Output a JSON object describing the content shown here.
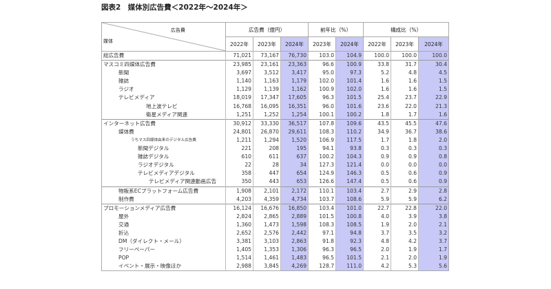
{
  "title": "図表2　媒体別広告費＜2022年～2024年＞",
  "header": {
    "corner_top": "広告費",
    "corner_bottom": "媒体",
    "group_spend": "広告費（億円）",
    "group_yoy": "前年比（%）",
    "group_share": "構成比（%）",
    "spend_years": [
      "2022年",
      "2023年",
      "2024年"
    ],
    "yoy_years": [
      "2023年",
      "2024年"
    ],
    "share_years": [
      "2022年",
      "2023年",
      "2024年"
    ]
  },
  "highlight_color": "#c9c9f7",
  "rows": [
    {
      "label": "総広告費",
      "level": 0,
      "values": [
        "71,021",
        "73,167",
        "76,730",
        "103.0",
        "104.9",
        "100.0",
        "100.0",
        "100.0"
      ]
    },
    {
      "label": "マスコミ四媒体広告費",
      "level": 0,
      "values": [
        "23,985",
        "23,161",
        "23,363",
        "96.6",
        "100.9",
        "33.8",
        "31.7",
        "30.4"
      ]
    },
    {
      "label": "新聞",
      "level": 1,
      "values": [
        "3,697",
        "3,512",
        "3,417",
        "95.0",
        "97.3",
        "5.2",
        "4.8",
        "4.5"
      ]
    },
    {
      "label": "雑誌",
      "level": 1,
      "values": [
        "1,140",
        "1,163",
        "1,179",
        "102.0",
        "101.4",
        "1.6",
        "1.6",
        "1.5"
      ]
    },
    {
      "label": "ラジオ",
      "level": 1,
      "values": [
        "1,129",
        "1,139",
        "1,162",
        "100.9",
        "102.0",
        "1.6",
        "1.6",
        "1.5"
      ]
    },
    {
      "label": "テレビメディア",
      "level": 1,
      "values": [
        "18,019",
        "17,347",
        "17,605",
        "96.3",
        "101.5",
        "25.4",
        "23.7",
        "22.9"
      ]
    },
    {
      "label": "地上波テレビ",
      "level": 2,
      "values": [
        "16,768",
        "16,095",
        "16,351",
        "96.0",
        "101.6",
        "23.6",
        "22.0",
        "21.3"
      ]
    },
    {
      "label": "衛星メディア関連",
      "level": 2,
      "values": [
        "1,251",
        "1,252",
        "1,254",
        "100.1",
        "100.2",
        "1.8",
        "1.7",
        "1.6"
      ]
    },
    {
      "label": "インターネット広告費",
      "level": 0,
      "values": [
        "30,912",
        "33,330",
        "36,517",
        "107.8",
        "109.6",
        "43.5",
        "45.5",
        "47.6"
      ]
    },
    {
      "label": "媒体費",
      "level": 1,
      "values": [
        "24,801",
        "26,870",
        "29,611",
        "108.3",
        "110.2",
        "34.9",
        "36.7",
        "38.6"
      ]
    },
    {
      "label": "うちマス四媒体由来のデジタル広告費",
      "level": 3,
      "values": [
        "1,211",
        "1,294",
        "1,520",
        "106.9",
        "117.5",
        "1.7",
        "1.8",
        "2.0"
      ]
    },
    {
      "label": "新聞デジタル",
      "level": 4,
      "values": [
        "221",
        "208",
        "195",
        "94.1",
        "93.8",
        "0.3",
        "0.3",
        "0.3"
      ]
    },
    {
      "label": "雑誌デジタル",
      "level": 4,
      "values": [
        "610",
        "611",
        "637",
        "100.2",
        "104.3",
        "0.9",
        "0.9",
        "0.8"
      ]
    },
    {
      "label": "ラジオデジタル",
      "level": 4,
      "values": [
        "22",
        "28",
        "34",
        "127.3",
        "121.4",
        "0.0",
        "0.0",
        "0.0"
      ]
    },
    {
      "label": "テレビメディアデジタル",
      "level": 4,
      "values": [
        "358",
        "447",
        "654",
        "124.9",
        "146.3",
        "0.5",
        "0.6",
        "0.9"
      ]
    },
    {
      "label": "テレビメディア関連動画広告",
      "level": 5,
      "values": [
        "350",
        "443",
        "653",
        "126.6",
        "147.4",
        "0.5",
        "0.6",
        "0.9"
      ]
    },
    {
      "label": "物販系ECプラットフォーム広告費",
      "level": 1,
      "values": [
        "1,908",
        "2,101",
        "2,172",
        "110.1",
        "103.4",
        "2.7",
        "2.9",
        "2.8"
      ]
    },
    {
      "label": "制作費",
      "level": 1,
      "values": [
        "4,203",
        "4,359",
        "4,734",
        "103.7",
        "108.6",
        "5.9",
        "5.9",
        "6.2"
      ]
    },
    {
      "label": "プロモーションメディア広告費",
      "level": 0,
      "values": [
        "16,124",
        "16,676",
        "16,850",
        "103.4",
        "101.0",
        "22.7",
        "22.8",
        "22.0"
      ]
    },
    {
      "label": "屋外",
      "level": 1,
      "values": [
        "2,824",
        "2,865",
        "2,889",
        "101.5",
        "100.8",
        "4.0",
        "3.9",
        "3.8"
      ]
    },
    {
      "label": "交通",
      "level": 1,
      "values": [
        "1,360",
        "1,473",
        "1,598",
        "108.3",
        "108.5",
        "1.9",
        "2.0",
        "2.1"
      ]
    },
    {
      "label": "折込",
      "level": 1,
      "values": [
        "2,652",
        "2,576",
        "2,442",
        "97.1",
        "94.8",
        "3.7",
        "3.5",
        "3.2"
      ]
    },
    {
      "label": "DM（ダイレクト・メール）",
      "level": 1,
      "values": [
        "3,381",
        "3,103",
        "2,863",
        "91.8",
        "92.3",
        "4.8",
        "4.2",
        "3.7"
      ]
    },
    {
      "label": "フリーペーパー",
      "level": 1,
      "values": [
        "1,405",
        "1,353",
        "1,306",
        "96.3",
        "96.5",
        "2.0",
        "1.9",
        "1.7"
      ]
    },
    {
      "label": "POP",
      "level": 1,
      "values": [
        "1,514",
        "1,461",
        "1,483",
        "96.5",
        "101.5",
        "2.1",
        "2.0",
        "1.9"
      ]
    },
    {
      "label": "イベント・展示・映像ほか",
      "level": 1,
      "values": [
        "2,988",
        "3,845",
        "4,269",
        "128.7",
        "111.0",
        "4.2",
        "5.3",
        "5.6"
      ]
    }
  ]
}
